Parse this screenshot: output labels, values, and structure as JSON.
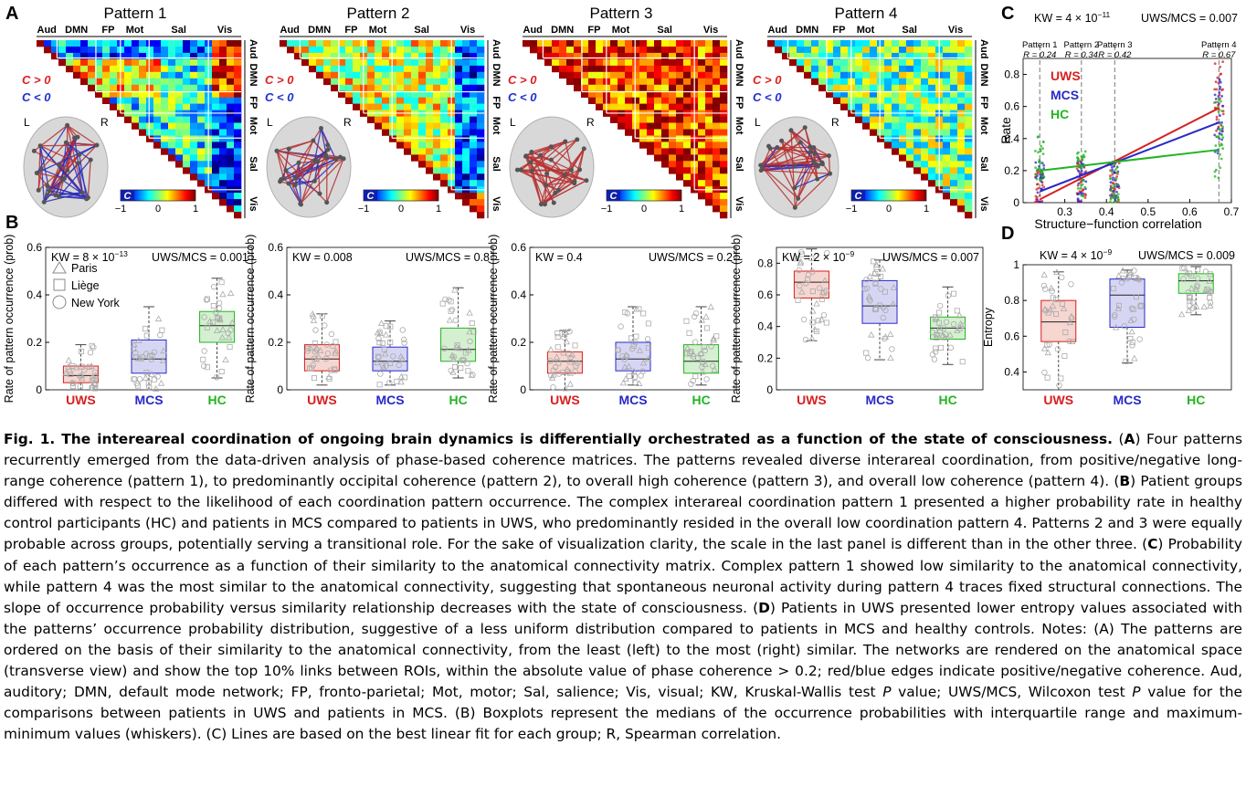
{
  "panelA": {
    "letter": "A",
    "patterns": [
      {
        "title": "Pattern 1"
      },
      {
        "title": "Pattern 2"
      },
      {
        "title": "Pattern 3"
      },
      {
        "title": "Pattern 4"
      }
    ],
    "top_labels": [
      "Aud",
      "DMN",
      "FP",
      "Mot",
      "Sal",
      "Vis"
    ],
    "side_labels": [
      "Aud",
      "DMN",
      "FP",
      "Mot",
      "Sal",
      "Vis"
    ],
    "legend_pos": "C > 0",
    "legend_neg": "C < 0",
    "L": "L",
    "R": "R",
    "cbar_label": "C",
    "cbar_ticks": [
      "−1",
      "0",
      "1"
    ],
    "colors": {
      "pos": "#e02020",
      "neg": "#2030d0"
    }
  },
  "panelB": {
    "letter": "B",
    "y_label": "Rate of pattern occurrence (prob)",
    "groups": [
      "UWS",
      "MCS",
      "HC"
    ],
    "group_colors": [
      "#d82020",
      "#2828c8",
      "#22b422"
    ],
    "sites": [
      "Paris",
      "Liège",
      "New York"
    ],
    "charts": [
      {
        "kw": "KW = 8 × 10",
        "kw_exp": "−13",
        "uws": "UWS/MCS = 0.001"
      },
      {
        "kw": "KW = 0.008",
        "kw_exp": "",
        "uws": "UWS/MCS = 0.8"
      },
      {
        "kw": "KW = 0.4",
        "kw_exp": "",
        "uws": "UWS/MCS = 0.2"
      },
      {
        "kw": "KW = 2 × 10",
        "kw_exp": "−9",
        "uws": "UWS/MCS = 0.007"
      }
    ]
  },
  "panelC": {
    "letter": "C",
    "kw": "KW = 4 × 10",
    "kw_exp": "−11",
    "uws": "UWS/MCS = 0.007",
    "y_label": "Rate",
    "x_label": "Structure−function correlation",
    "pattern_labels": [
      {
        "name": "Pattern 1",
        "r": "R = 0.24"
      },
      {
        "name": "Pattern 2",
        "r": "R = 0.34"
      },
      {
        "name": "Pattern 3",
        "r": "R = 0.42"
      },
      {
        "name": "Pattern 4",
        "r": "R = 0.67"
      }
    ],
    "legend": [
      "UWS",
      "MCS",
      "HC"
    ]
  },
  "panelD": {
    "letter": "D",
    "kw": "KW = 4 × 10",
    "kw_exp": "−9",
    "uws": "UWS/MCS = 0.009",
    "y_label": "Entropy"
  },
  "chart_data": [
    {
      "type": "box",
      "ylabel": "Rate of pattern occurrence (prob)",
      "categories": [
        "UWS",
        "MCS",
        "HC"
      ],
      "ylim": [
        0,
        0.6
      ],
      "yticks": [
        0,
        0.2,
        0.4,
        0.6
      ],
      "boxes": [
        {
          "min": 0.0,
          "q1": 0.03,
          "median": 0.06,
          "q3": 0.1,
          "max": 0.19
        },
        {
          "min": 0.0,
          "q1": 0.07,
          "median": 0.13,
          "q3": 0.21,
          "max": 0.35
        },
        {
          "min": 0.05,
          "q1": 0.2,
          "median": 0.27,
          "q3": 0.33,
          "max": 0.47
        }
      ]
    },
    {
      "type": "box",
      "ylabel": "Rate of pattern occurrence (prob)",
      "categories": [
        "UWS",
        "MCS",
        "HC"
      ],
      "ylim": [
        0,
        0.6
      ],
      "yticks": [
        0,
        0.2,
        0.4,
        0.6
      ],
      "boxes": [
        {
          "min": 0.02,
          "q1": 0.08,
          "median": 0.13,
          "q3": 0.19,
          "max": 0.32
        },
        {
          "min": 0.02,
          "q1": 0.08,
          "median": 0.12,
          "q3": 0.18,
          "max": 0.29
        },
        {
          "min": 0.05,
          "q1": 0.12,
          "median": 0.17,
          "q3": 0.26,
          "max": 0.43
        }
      ]
    },
    {
      "type": "box",
      "ylabel": "Rate of pattern occurrence (prob)",
      "categories": [
        "UWS",
        "MCS",
        "HC"
      ],
      "ylim": [
        0,
        0.6
      ],
      "yticks": [
        0,
        0.2,
        0.4,
        0.6
      ],
      "boxes": [
        {
          "min": 0.0,
          "q1": 0.07,
          "median": 0.12,
          "q3": 0.16,
          "max": 0.25
        },
        {
          "min": 0.02,
          "q1": 0.08,
          "median": 0.13,
          "q3": 0.2,
          "max": 0.35
        },
        {
          "min": 0.02,
          "q1": 0.07,
          "median": 0.12,
          "q3": 0.19,
          "max": 0.35
        }
      ]
    },
    {
      "type": "box",
      "ylabel": "Rate of pattern occurrence (prob)",
      "categories": [
        "UWS",
        "MCS",
        "HC"
      ],
      "ylim": [
        0,
        0.9
      ],
      "yticks": [
        0,
        0.2,
        0.4,
        0.6,
        0.8
      ],
      "boxes": [
        {
          "min": 0.31,
          "q1": 0.58,
          "median": 0.68,
          "q3": 0.75,
          "max": 0.89
        },
        {
          "min": 0.19,
          "q1": 0.42,
          "median": 0.53,
          "q3": 0.69,
          "max": 0.82
        },
        {
          "min": 0.16,
          "q1": 0.32,
          "median": 0.39,
          "q3": 0.46,
          "max": 0.65
        }
      ]
    },
    {
      "type": "scatter",
      "xlabel": "Structure−function correlation",
      "ylabel": "Rate",
      "xlim": [
        0.2,
        0.7
      ],
      "ylim": [
        0,
        0.9
      ],
      "xticks": [
        0.3,
        0.4,
        0.5,
        0.6,
        0.7
      ],
      "yticks": [
        0,
        0.2,
        0.4,
        0.6,
        0.8
      ],
      "pattern_x": [
        0.24,
        0.34,
        0.42,
        0.67
      ],
      "series": [
        {
          "name": "UWS",
          "fit": [
            [
              0.24,
              0.02
            ],
            [
              0.67,
              0.59
            ]
          ]
        },
        {
          "name": "MCS",
          "fit": [
            [
              0.24,
              0.07
            ],
            [
              0.67,
              0.5
            ]
          ]
        },
        {
          "name": "HC",
          "fit": [
            [
              0.24,
              0.2
            ],
            [
              0.67,
              0.33
            ]
          ]
        }
      ]
    },
    {
      "type": "box",
      "ylabel": "Entropy",
      "categories": [
        "UWS",
        "MCS",
        "HC"
      ],
      "ylim": [
        0.3,
        1.0
      ],
      "yticks": [
        0.4,
        0.6,
        0.8,
        1
      ],
      "boxes": [
        {
          "min": 0.3,
          "q1": 0.57,
          "median": 0.68,
          "q3": 0.8,
          "max": 0.96
        },
        {
          "min": 0.45,
          "q1": 0.65,
          "median": 0.83,
          "q3": 0.92,
          "max": 0.97
        },
        {
          "min": 0.72,
          "q1": 0.84,
          "median": 0.91,
          "q3": 0.95,
          "max": 0.99
        }
      ]
    }
  ],
  "caption": {
    "title": "Fig. 1. The intereareal coordination of ongoing brain dynamics is differentially orchestrated as a function of the state of consciousness.",
    "sA": "A",
    "tA": " Four patterns recurrently emerged from the data-driven analysis of phase-based coherence matrices. The patterns revealed diverse interareal coordination, from positive/negative long-range coherence (pattern 1), to predominantly occipital coherence (pattern 2), to overall high coherence (pattern 3), and overall low coherence (pattern 4). (",
    "sB": "B",
    "tB": ") Patient groups differed with respect to the likelihood of each coordination pattern occurrence. The complex interareal coordination pattern 1 presented a higher probability rate in healthy control participants (HC) and patients in MCS compared to patients in UWS, who predominantly resided in the overall low coordination pattern 4. Patterns 2 and 3 were equally probable across groups, potentially serving a transitional role. For the sake of visualization clarity, the scale in the last panel is different than in the other three. (",
    "sC": "C",
    "tC": ") Probability of each pattern’s occurrence as a function of their similarity to the anatomical connectivity matrix. Complex pattern 1 showed low similarity to the anatomical connectivity, while pattern 4 was the most similar to the anatomical connectivity, suggesting that spontaneous neuronal activity during pattern 4 traces fixed structural connections. The slope of occurrence probability versus similarity relationship decreases with the state of consciousness. (",
    "sD": "D",
    "tD1": ") Patients in UWS presented lower entropy values associated with the patterns’ occurrence probability distribution, suggestive of a less uniform distribution compared to patients in MCS and healthy controls. Notes: (A) The patterns are ordered on the basis of their similarity to the anatomical connectivity, from the least (left) to the most (right) similar. The networks are rendered on the anatomical space (transverse view) and show the top 10% links between ROIs, within the absolute value of phase coherence > 0.2; red/blue edges indicate positive/negative coherence. Aud, auditory; DMN, default mode network; FP, fronto-parietal; Mot, motor; Sal, salience; Vis, visual; KW, Kruskal-Wallis test ",
    "P1": "P",
    "tD2": " value; UWS/MCS, Wilcoxon test ",
    "P2": "P",
    "tD3": " value for the comparisons between patients in UWS and patients in MCS. (B) Boxplots represent the medians of the occurrence probabilities with interquartile range and maximum-minimum values (whiskers). (C) Lines are based on the best linear fit for each group; R, Spearman correlation."
  }
}
